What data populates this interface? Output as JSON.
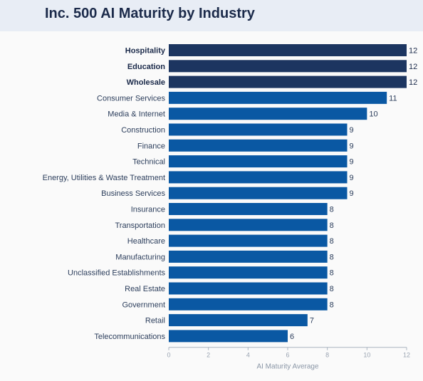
{
  "title": "Inc. 500 AI Maturity by Industry",
  "colors": {
    "highlight": "#1c3560",
    "bar": "#0a58a3",
    "label_highlight": "#1b2a4a",
    "label": "#2c3e5c",
    "axis": "#aab4c0"
  },
  "chart_data": {
    "type": "bar",
    "orientation": "horizontal",
    "title": "Inc. 500 AI Maturity by Industry",
    "xlabel": "AI Maturity Average",
    "ylabel": "",
    "xlim": [
      0,
      12
    ],
    "xticks": [
      0,
      2,
      4,
      6,
      8,
      10,
      12
    ],
    "grid": false,
    "categories": [
      "Hospitality",
      "Education",
      "Wholesale",
      "Consumer Services",
      "Media & Internet",
      "Construction",
      "Finance",
      "Technical",
      "Energy, Utilities & Waste Treatment",
      "Business Services",
      "Insurance",
      "Transportation",
      "Healthcare",
      "Manufacturing",
      "Unclassified Establishments",
      "Real Estate",
      "Government",
      "Retail",
      "Telecommunications"
    ],
    "values": [
      12,
      12,
      12,
      11,
      10,
      9,
      9,
      9,
      9,
      9,
      8,
      8,
      8,
      8,
      8,
      8,
      8,
      7,
      6
    ],
    "highlighted": [
      "Hospitality",
      "Education",
      "Wholesale"
    ]
  }
}
